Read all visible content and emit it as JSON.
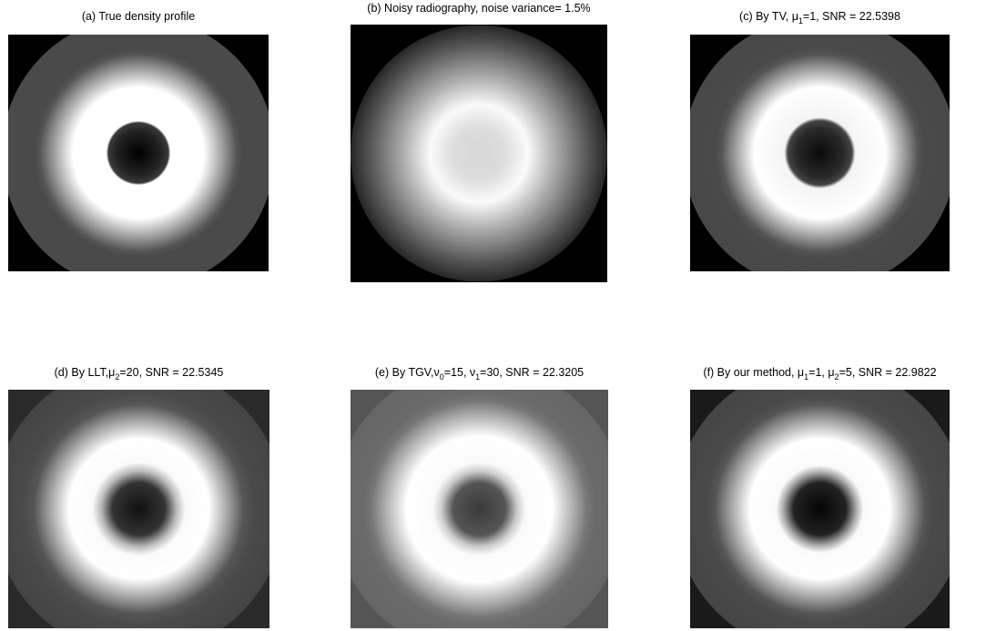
{
  "panels": [
    {
      "title": [
        {
          "text": "(a) True density profile"
        }
      ]
    },
    {
      "title": [
        {
          "text": "(b) Noisy radiography, noise variance= 1.5%"
        }
      ]
    },
    {
      "title": [
        {
          "text": "(c) By TV, μ"
        },
        {
          "sub": "1"
        },
        {
          "text": "=1, SNR = 22.5398"
        }
      ]
    },
    {
      "title": [
        {
          "text": "(d) By LLT,μ"
        },
        {
          "sub": "2"
        },
        {
          "text": "=20, SNR = 22.5345"
        }
      ]
    },
    {
      "title": [
        {
          "text": "(e) By TGV,ν"
        },
        {
          "sub": "0"
        },
        {
          "text": "=15, ν"
        },
        {
          "sub": "1"
        },
        {
          "text": "=30, SNR = 22.3205"
        }
      ]
    },
    {
      "title": [
        {
          "text": "(f) By our method, μ"
        },
        {
          "sub": "1"
        },
        {
          "text": "=1, μ"
        },
        {
          "sub": "2"
        },
        {
          "text": "=5, SNR = 22.9822"
        }
      ]
    }
  ]
}
